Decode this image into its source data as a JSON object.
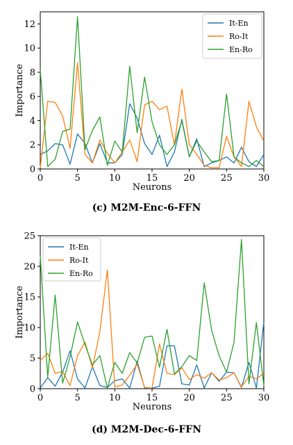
{
  "chart_data": [
    {
      "type": "line",
      "caption": "(c)  M2M-Enc-6-FFN",
      "xlabel": "Neurons",
      "ylabel": "Importance",
      "xlim": [
        0,
        30
      ],
      "ylim": [
        0,
        13
      ],
      "xticks": [
        0,
        5,
        10,
        15,
        20,
        25,
        30
      ],
      "yticks": [
        0,
        2,
        4,
        6,
        8,
        10,
        12
      ],
      "grid": false,
      "legend_position": "top-right",
      "x": [
        0,
        1,
        2,
        3,
        4,
        5,
        6,
        7,
        8,
        9,
        10,
        11,
        12,
        13,
        14,
        15,
        16,
        17,
        18,
        19,
        20,
        21,
        22,
        23,
        24,
        25,
        26,
        27,
        28,
        29,
        30
      ],
      "series": [
        {
          "name": "It-En",
          "color": "#1f77b4",
          "values": [
            1.2,
            1.5,
            2.1,
            2.0,
            0.4,
            2.9,
            2.1,
            0.5,
            2.1,
            0.5,
            0.5,
            1.2,
            5.4,
            4.2,
            2.1,
            1.2,
            2.8,
            0.2,
            1.4,
            4.1,
            1.0,
            2.5,
            0.2,
            0.5,
            0.7,
            1.0,
            0.5,
            1.8,
            0.6,
            0.2,
            1.2
          ]
        },
        {
          "name": "Ro-It",
          "color": "#ff7f0e",
          "values": [
            0.1,
            5.6,
            5.5,
            4.4,
            1.7,
            8.8,
            1.2,
            0.5,
            2.4,
            1.3,
            0.5,
            1.4,
            2.4,
            0.6,
            5.3,
            5.6,
            4.9,
            5.2,
            2.0,
            6.6,
            2.0,
            1.2,
            0.3,
            0.1,
            0.1,
            2.7,
            1.0,
            0.2,
            5.6,
            3.5,
            2.3
          ]
        },
        {
          "name": "En-Ro",
          "color": "#2ca02c",
          "values": [
            8.2,
            0.2,
            0.8,
            3.1,
            3.3,
            12.6,
            1.6,
            3.2,
            4.3,
            0.3,
            2.3,
            1.4,
            8.5,
            3.0,
            7.6,
            3.9,
            2.0,
            1.2,
            2.0,
            4.0,
            1.0,
            2.3,
            1.4,
            0.6,
            0.7,
            6.2,
            1.0,
            0.5,
            0.2,
            0.7,
            0.2
          ]
        }
      ]
    },
    {
      "type": "line",
      "caption": "(d)  M2M-Dec-6-FFN",
      "xlabel": "Neurons",
      "ylabel": "Importance",
      "xlim": [
        0,
        30
      ],
      "ylim": [
        0,
        25
      ],
      "xticks": [
        0,
        5,
        10,
        15,
        20,
        25,
        30
      ],
      "yticks": [
        0,
        5,
        10,
        15,
        20,
        25
      ],
      "grid": false,
      "legend_position": "top-left",
      "x": [
        0,
        1,
        2,
        3,
        4,
        5,
        6,
        7,
        8,
        9,
        10,
        11,
        12,
        13,
        14,
        15,
        16,
        17,
        18,
        19,
        20,
        21,
        22,
        23,
        24,
        25,
        26,
        27,
        28,
        29,
        30
      ],
      "series": [
        {
          "name": "It-En",
          "color": "#1f77b4",
          "values": [
            0.1,
            1.8,
            0.4,
            2.7,
            6.2,
            1.6,
            0.1,
            3.6,
            0.5,
            0.2,
            1.3,
            1.6,
            0.1,
            4.5,
            0.1,
            0.1,
            0.4,
            7.0,
            7.0,
            0.8,
            0.6,
            3.9,
            0.1,
            2.6,
            1.2,
            2.7,
            2.6,
            0.2,
            4.3,
            0.1,
            10.9
          ]
        },
        {
          "name": "Ro-It",
          "color": "#ff7f0e",
          "values": [
            4.6,
            5.8,
            2.5,
            2.8,
            0.5,
            5.4,
            7.6,
            3.4,
            9.3,
            19.4,
            0.3,
            0.6,
            2.2,
            4.0,
            0.2,
            0.1,
            7.3,
            2.5,
            2.3,
            3.4,
            1.5,
            2.3,
            1.7,
            2.6,
            1.4,
            1.8,
            2.6,
            0.3,
            2.0,
            1.6,
            2.5
          ]
        },
        {
          "name": "En-Ro",
          "color": "#2ca02c",
          "values": [
            21.7,
            1.9,
            15.3,
            0.9,
            5.2,
            10.9,
            7.2,
            3.9,
            5.4,
            0.1,
            4.3,
            2.5,
            5.9,
            4.2,
            8.4,
            8.6,
            3.5,
            9.7,
            2.4,
            3.6,
            5.4,
            4.6,
            17.3,
            9.5,
            5.4,
            2.7,
            7.6,
            24.4,
            0.8,
            10.8,
            0.5
          ]
        }
      ]
    }
  ]
}
